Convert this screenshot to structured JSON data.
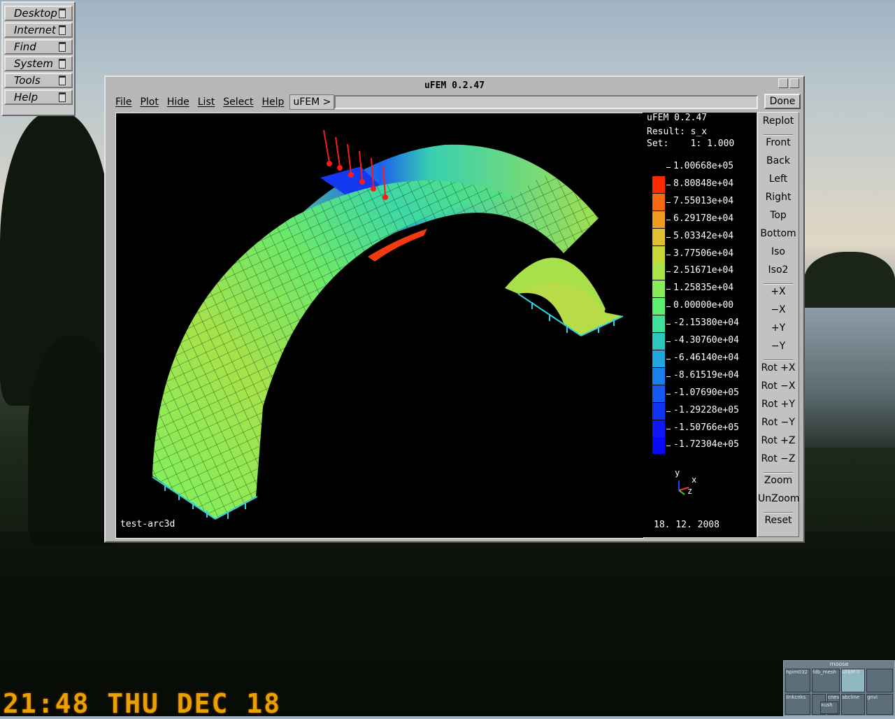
{
  "desktop_menu": {
    "items": [
      {
        "label": "Desktop"
      },
      {
        "label": "Internet"
      },
      {
        "label": "Find"
      },
      {
        "label": "System"
      },
      {
        "label": "Tools"
      },
      {
        "label": "Help"
      }
    ]
  },
  "window": {
    "title": "uFEM 0.2.47",
    "menu": [
      "File",
      "Plot",
      "Hide",
      "List",
      "Select",
      "Help"
    ],
    "command_label": "uFEM >",
    "command_value": "",
    "done_label": "Done"
  },
  "plot": {
    "program": "uFEM 0.2.47",
    "result_line": "Result: s_x",
    "set_line": "Set:    1: 1.000",
    "model_name": "test-arc3d",
    "date": "18. 12. 2008",
    "axes": {
      "y": "y",
      "x": "x",
      "z": "z"
    },
    "legend": [
      {
        "value": "1.00668e+05",
        "color": "#000000"
      },
      {
        "value": "8.80848e+04",
        "color": "#ff2a00"
      },
      {
        "value": "7.55013e+04",
        "color": "#f56a10"
      },
      {
        "value": "6.29178e+04",
        "color": "#ee9a20"
      },
      {
        "value": "5.03342e+04",
        "color": "#e0c030"
      },
      {
        "value": "3.77506e+04",
        "color": "#c8d838"
      },
      {
        "value": "2.51671e+04",
        "color": "#a8e448"
      },
      {
        "value": "1.25835e+04",
        "color": "#88ec5a"
      },
      {
        "value": "0.00000e+00",
        "color": "#5cf070"
      },
      {
        "value": "-2.15380e+04",
        "color": "#3ee09a"
      },
      {
        "value": "-4.30760e+04",
        "color": "#2cc8c0"
      },
      {
        "value": "-6.46140e+04",
        "color": "#20a8de"
      },
      {
        "value": "-8.61519e+04",
        "color": "#1a80ee"
      },
      {
        "value": "-1.07690e+05",
        "color": "#1656f2"
      },
      {
        "value": "-1.29228e+05",
        "color": "#1232f4"
      },
      {
        "value": "-1.50766e+05",
        "color": "#0e18f6"
      },
      {
        "value": "-1.72304e+05",
        "color": "#0a08f8"
      }
    ]
  },
  "view_buttons": {
    "groups": [
      [
        "Replot"
      ],
      [
        "Front",
        "Back",
        "Left",
        "Right",
        "Top",
        "Bottom",
        "Iso",
        "Iso2"
      ],
      [
        "+X",
        "−X",
        "+Y",
        "−Y"
      ],
      [
        "Rot +X",
        "Rot −X",
        "Rot +Y",
        "Rot −Y",
        "Rot +Z",
        "Rot −Z"
      ],
      [
        "Zoom",
        "UnZoom"
      ],
      [
        "Reset"
      ]
    ]
  },
  "clock": "21:48 THU DEC 18",
  "pager": {
    "title": "moose",
    "cells": [
      "hpim032",
      "fdb_mesh",
      "uFEM 0",
      "",
      "linkcnks",
      "",
      "cnev",
      "abcline",
      "xush",
      "",
      "gnvi"
    ]
  }
}
